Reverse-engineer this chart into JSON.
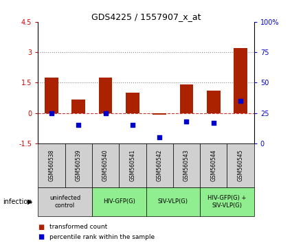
{
  "title": "GDS4225 / 1557907_x_at",
  "samples": [
    "GSM560538",
    "GSM560539",
    "GSM560540",
    "GSM560541",
    "GSM560542",
    "GSM560543",
    "GSM560544",
    "GSM560545"
  ],
  "transformed_count": [
    1.75,
    0.65,
    1.75,
    1.0,
    -0.08,
    1.4,
    1.1,
    3.2
  ],
  "percentile_rank": [
    25,
    15,
    25,
    15,
    5,
    18,
    17,
    35
  ],
  "ylim_left": [
    -1.5,
    4.5
  ],
  "ylim_right": [
    0,
    100
  ],
  "bar_color": "#aa2200",
  "dot_color": "#0000cc",
  "dashed_line_color": "#cc3333",
  "dotted_line_color": "#888888",
  "left_axis_color": "#cc0000",
  "right_axis_color": "#0000cc",
  "legend_red_label": "transformed count",
  "legend_blue_label": "percentile rank within the sample",
  "infection_label": "infection",
  "group_configs": [
    {
      "start": 0,
      "end": 1,
      "color": "#d0d0d0",
      "label": "uninfected\ncontrol"
    },
    {
      "start": 2,
      "end": 3,
      "color": "#90ee90",
      "label": "HIV-GFP(G)"
    },
    {
      "start": 4,
      "end": 5,
      "color": "#90ee90",
      "label": "SIV-VLP(G)"
    },
    {
      "start": 6,
      "end": 7,
      "color": "#90ee90",
      "label": "HIV-GFP(G) +\nSIV-VLP(G)"
    }
  ],
  "sample_box_color": "#d0d0d0"
}
